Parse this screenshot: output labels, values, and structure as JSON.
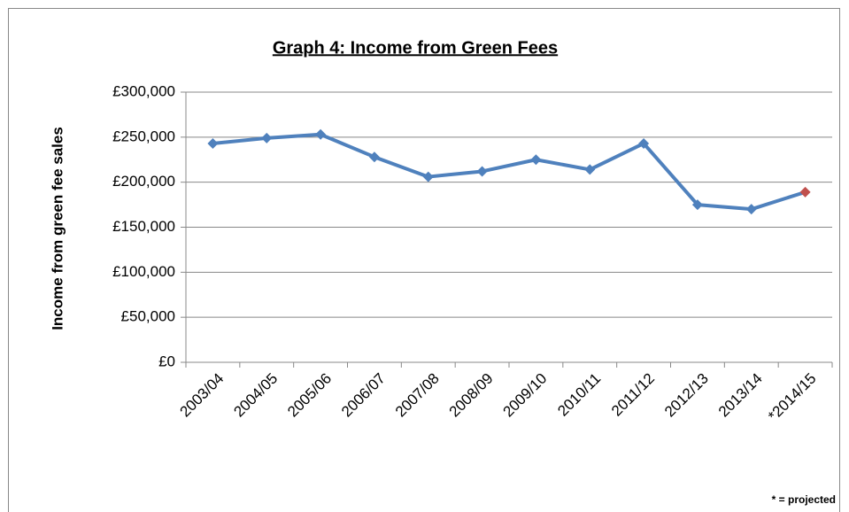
{
  "chart_data": {
    "type": "line",
    "title": "Graph 4: Income from Green Fees",
    "y_label": "Income from green fee sales",
    "footnote": "* = projected",
    "categories": [
      "2003/04",
      "2004/05",
      "2005/06",
      "2006/07",
      "2007/08",
      "2008/09",
      "2009/10",
      "2010/11",
      "2011/12",
      "2012/13",
      "2013/14",
      "*2014/15"
    ],
    "series": [
      {
        "name": "Income from green fee sales",
        "color": "#4f81bd",
        "values": [
          243000,
          249000,
          253000,
          228000,
          206000,
          212000,
          225000,
          214000,
          243000,
          175000,
          170000,
          189000
        ],
        "point_colors": [
          "#4f81bd",
          "#4f81bd",
          "#4f81bd",
          "#4f81bd",
          "#4f81bd",
          "#4f81bd",
          "#4f81bd",
          "#4f81bd",
          "#4f81bd",
          "#4f81bd",
          "#4f81bd",
          "#c0504d"
        ]
      }
    ],
    "ylim": [
      0,
      300000
    ],
    "yticks": [
      {
        "value": 0,
        "label": "£0"
      },
      {
        "value": 50000,
        "label": "£50,000"
      },
      {
        "value": 100000,
        "label": "£100,000"
      },
      {
        "value": 150000,
        "label": "£150,000"
      },
      {
        "value": 200000,
        "label": "£200,000"
      },
      {
        "value": 250000,
        "label": "£250,000"
      },
      {
        "value": 300000,
        "label": "£300,000"
      }
    ],
    "grid": true
  }
}
